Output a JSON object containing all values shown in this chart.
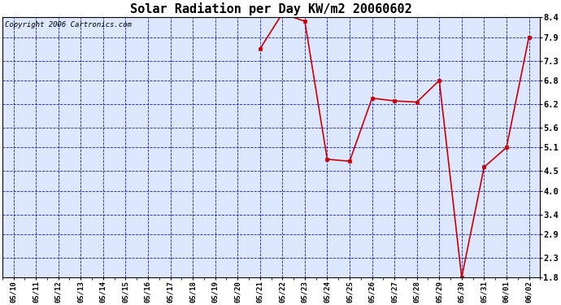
{
  "title": "Solar Radiation per Day KW/m2 20060602",
  "copyright": "Copyright 2006 Cartronics.com",
  "x_labels": [
    "05/10",
    "05/11",
    "05/12",
    "05/13",
    "05/14",
    "05/15",
    "05/16",
    "05/17",
    "05/18",
    "05/19",
    "05/20",
    "05/21",
    "05/22",
    "05/23",
    "05/24",
    "05/25",
    "05/26",
    "05/27",
    "05/28",
    "05/29",
    "05/30",
    "05/31",
    "06/01",
    "06/02"
  ],
  "data_dates": [
    "05/21",
    "05/22",
    "05/23",
    "05/24",
    "05/25",
    "05/26",
    "05/27",
    "05/28",
    "05/29",
    "05/30",
    "05/31",
    "06/01",
    "06/02"
  ],
  "data_values": [
    7.6,
    8.5,
    8.3,
    4.8,
    4.75,
    6.35,
    6.28,
    6.25,
    6.8,
    1.8,
    4.6,
    5.1,
    7.9
  ],
  "ylim_min": 1.8,
  "ylim_max": 8.4,
  "yticks": [
    1.8,
    2.3,
    2.9,
    3.4,
    4.0,
    4.5,
    5.1,
    5.6,
    6.2,
    6.8,
    7.3,
    7.9,
    8.4
  ],
  "line_color": "#cc0000",
  "marker": "s",
  "marker_size": 3,
  "plot_bg": "#dde8ff",
  "fig_bg": "#ffffff",
  "grid_color": "#0000cc",
  "title_fontsize": 11,
  "copyright_fontsize": 6.5,
  "xtick_fontsize": 6.5,
  "ytick_fontsize": 7.5
}
